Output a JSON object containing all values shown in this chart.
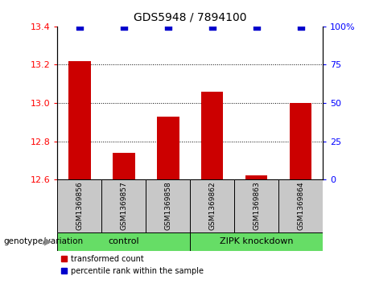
{
  "title": "GDS5948 / 7894100",
  "samples": [
    "GSM1369856",
    "GSM1369857",
    "GSM1369858",
    "GSM1369862",
    "GSM1369863",
    "GSM1369864"
  ],
  "red_values": [
    13.22,
    12.74,
    12.93,
    13.06,
    12.62,
    13.0
  ],
  "blue_values": [
    100,
    100,
    100,
    100,
    100,
    100
  ],
  "ylim_left": [
    12.6,
    13.4
  ],
  "ylim_right": [
    0,
    100
  ],
  "yticks_left": [
    12.6,
    12.8,
    13.0,
    13.2,
    13.4
  ],
  "yticks_right": [
    0,
    25,
    50,
    75,
    100
  ],
  "ytick_labels_right": [
    "0",
    "25",
    "50",
    "75",
    "100%"
  ],
  "group_box_color": "#C8C8C8",
  "green_color": "#66DD66",
  "bar_color": "#CC0000",
  "dot_color": "#0000CC",
  "legend_red": "transformed count",
  "legend_blue": "percentile rank within the sample",
  "genotype_label": "genotype/variation",
  "bar_width": 0.5,
  "dot_size": 35,
  "group_labels": [
    "control",
    "ZIPK knockdown"
  ],
  "group_starts": [
    0,
    3
  ],
  "group_ends": [
    2,
    5
  ]
}
